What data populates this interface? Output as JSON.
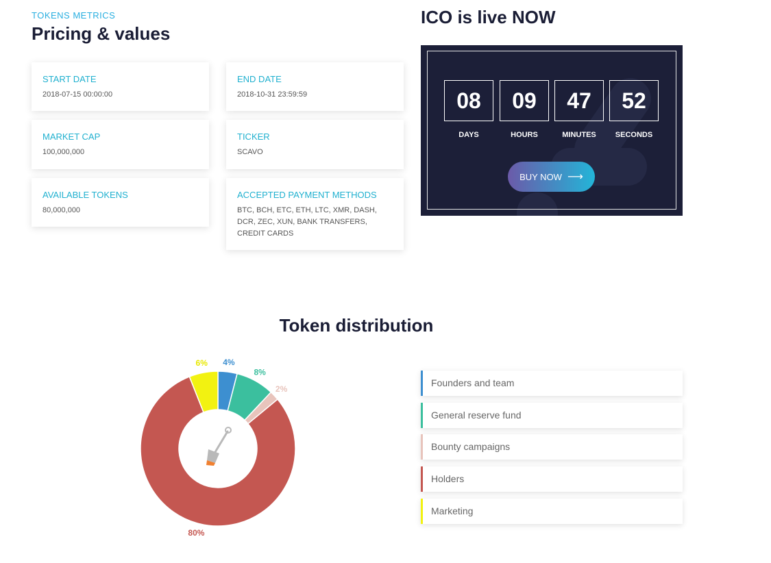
{
  "pricing": {
    "eyebrow": "TOKENS METRICS",
    "title": "Pricing & values",
    "cards": [
      {
        "label": "START DATE",
        "value": "2018-07-15 00:00:00"
      },
      {
        "label": "END DATE",
        "value": "2018-10-31 23:59:59"
      },
      {
        "label": "MARKET CAP",
        "value": "100,000,000"
      },
      {
        "label": "TICKER",
        "value": "SCAVO"
      },
      {
        "label": "AVAILABLE TOKENS",
        "value": "80,000,000"
      },
      {
        "label": "ACCEPTED PAYMENT METHODS",
        "value": "BTC, BCH, ETC, ETH, LTC, XMR, DASH, DCR, ZEC, XUN, BANK TRANSFERS, CREDIT CARDS"
      }
    ]
  },
  "ico": {
    "title": "ICO is live NOW",
    "countdown": [
      {
        "value": "08",
        "label": "DAYS"
      },
      {
        "value": "09",
        "label": "HOURS"
      },
      {
        "value": "47",
        "label": "MINUTES"
      },
      {
        "value": "52",
        "label": "SECONDS"
      }
    ],
    "buy_label": "BUY NOW",
    "buy_icon": "arrow-right-icon"
  },
  "distribution": {
    "title": "Token distribution",
    "center_icon": "shovel-icon",
    "legend": [
      {
        "label": "Founders and team",
        "color": "#3d8fd0"
      },
      {
        "label": "General reserve fund",
        "color": "#3bbf9e"
      },
      {
        "label": "Bounty campaigns",
        "color": "#e8c4bc"
      },
      {
        "label": "Holders",
        "color": "#c45751"
      },
      {
        "label": "Marketing",
        "color": "#f2f211"
      }
    ]
  },
  "chart_data": {
    "type": "pie",
    "title": "Token distribution",
    "categories": [
      "Founders and team",
      "General reserve fund",
      "Bounty campaigns",
      "Holders",
      "Marketing"
    ],
    "values": [
      4,
      8,
      2,
      80,
      6
    ],
    "labels": [
      "4%",
      "8%",
      "2%",
      "80%",
      "6%"
    ],
    "colors": [
      "#3d8fd0",
      "#3bbf9e",
      "#e8c4bc",
      "#c45751",
      "#f2f211"
    ],
    "label_colors": [
      "#3d8fd0",
      "#3bbf9e",
      "#e8c4bc",
      "#c45751",
      "#e8e800"
    ],
    "donut": true
  }
}
